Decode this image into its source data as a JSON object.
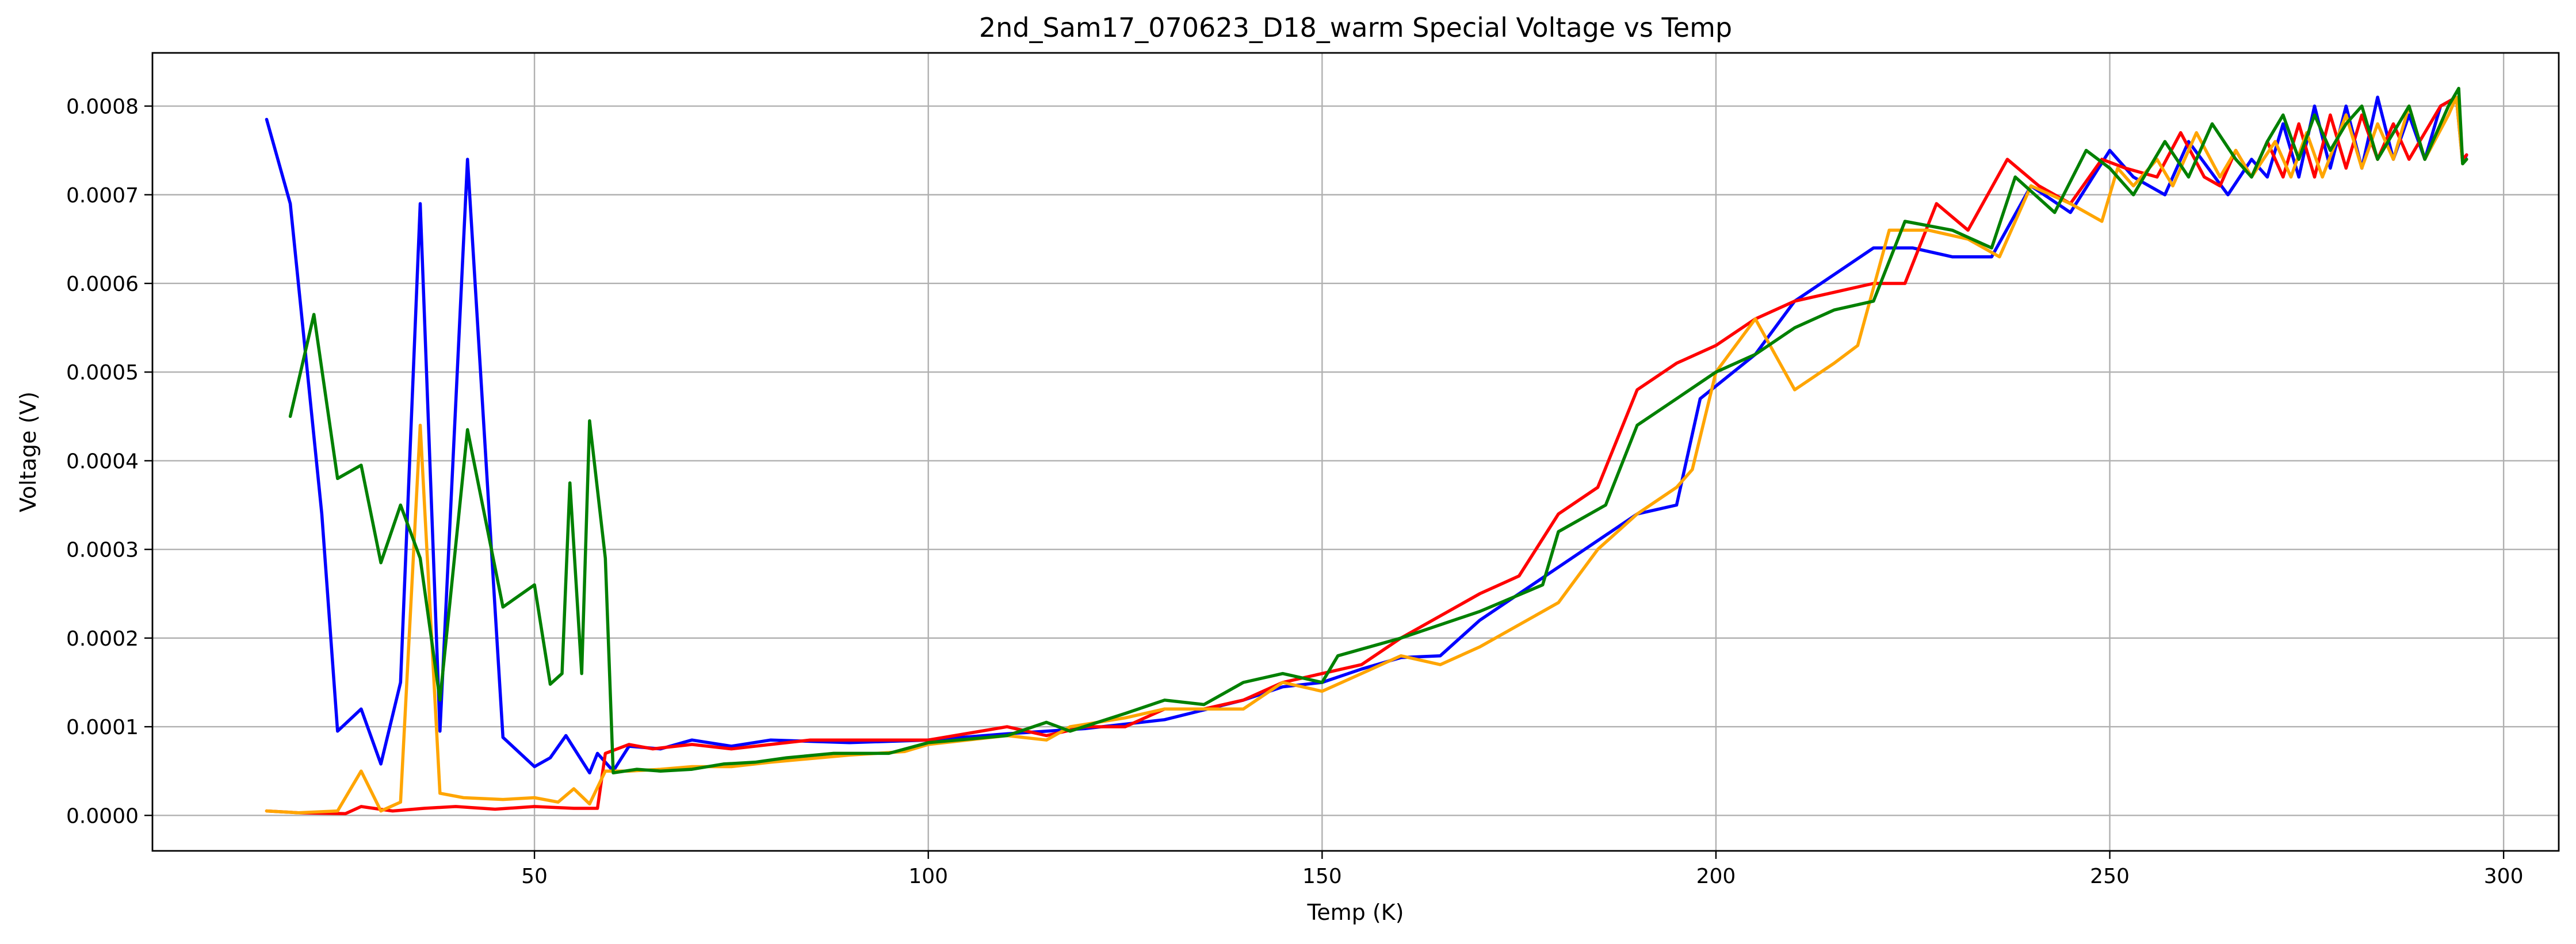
{
  "chart_data": {
    "type": "line",
    "title": "2nd_Sam17_070623_D18_warm Special Voltage vs Temp",
    "xlabel": "Temp (K)",
    "ylabel": "Voltage (V)",
    "xlim": [
      1.5,
      307
    ],
    "ylim": [
      -4e-05,
      0.00086
    ],
    "grid": true,
    "xticks": [
      50,
      100,
      150,
      200,
      250,
      300
    ],
    "xtick_labels": [
      "50",
      "100",
      "150",
      "200",
      "250",
      "300"
    ],
    "yticks": [
      0,
      0.0001,
      0.0002,
      0.0003,
      0.0004,
      0.0005,
      0.0006,
      0.0007,
      0.0008
    ],
    "ytick_labels": [
      "0.0000",
      "0.0001",
      "0.0002",
      "0.0003",
      "0.0004",
      "0.0005",
      "0.0006",
      "0.0007",
      "0.0008"
    ],
    "series": [
      {
        "name": "blue",
        "color": "#0000ff",
        "points": [
          [
            16,
            0.000785
          ],
          [
            19,
            0.00069
          ],
          [
            23,
            0.00034
          ],
          [
            25,
            9.5e-05
          ],
          [
            28,
            0.00012
          ],
          [
            30.5,
            5.8e-05
          ],
          [
            33,
            0.00015
          ],
          [
            35.5,
            0.00069
          ],
          [
            38,
            9.5e-05
          ],
          [
            41.5,
            0.00074
          ],
          [
            46,
            8.8e-05
          ],
          [
            50,
            5.5e-05
          ],
          [
            52,
            6.5e-05
          ],
          [
            54,
            9e-05
          ],
          [
            57,
            4.8e-05
          ],
          [
            58,
            7e-05
          ],
          [
            60,
            5e-05
          ],
          [
            62,
            7.8e-05
          ],
          [
            66,
            7.5e-05
          ],
          [
            70,
            8.5e-05
          ],
          [
            75,
            7.8e-05
          ],
          [
            80,
            8.5e-05
          ],
          [
            90,
            8.2e-05
          ],
          [
            100,
            8.5e-05
          ],
          [
            110,
            9.2e-05
          ],
          [
            120,
            9.8e-05
          ],
          [
            130,
            0.000108
          ],
          [
            140,
            0.00013
          ],
          [
            145,
            0.000145
          ],
          [
            150,
            0.00015
          ],
          [
            155,
            0.000165
          ],
          [
            160,
            0.000178
          ],
          [
            165,
            0.00018
          ],
          [
            170,
            0.00022
          ],
          [
            180,
            0.00028
          ],
          [
            190,
            0.00034
          ],
          [
            195,
            0.00035
          ],
          [
            198,
            0.00047
          ],
          [
            205,
            0.00052
          ],
          [
            210,
            0.00058
          ],
          [
            215,
            0.00061
          ],
          [
            220,
            0.00064
          ],
          [
            225,
            0.00064
          ],
          [
            230,
            0.00063
          ],
          [
            235,
            0.00063
          ],
          [
            240,
            0.00071
          ],
          [
            245,
            0.00068
          ],
          [
            250,
            0.00075
          ],
          [
            253,
            0.00072
          ],
          [
            257,
            0.0007
          ],
          [
            260,
            0.00076
          ],
          [
            265,
            0.0007
          ],
          [
            268,
            0.00074
          ],
          [
            270,
            0.00072
          ],
          [
            272,
            0.00078
          ],
          [
            274,
            0.00072
          ],
          [
            276,
            0.0008
          ],
          [
            278,
            0.00073
          ],
          [
            280,
            0.0008
          ],
          [
            282,
            0.00073
          ],
          [
            284,
            0.00081
          ],
          [
            286,
            0.00074
          ],
          [
            288,
            0.00079
          ],
          [
            290,
            0.00074
          ],
          [
            292,
            0.0008
          ],
          [
            294,
            0.00081
          ],
          [
            294.8,
            0.000735
          ],
          [
            295.3,
            0.000745
          ]
        ]
      },
      {
        "name": "red",
        "color": "#ff0000",
        "points": [
          [
            16,
            5e-06
          ],
          [
            20,
            3e-06
          ],
          [
            26,
            2e-06
          ],
          [
            28,
            1e-05
          ],
          [
            32,
            5e-06
          ],
          [
            36,
            8e-06
          ],
          [
            40,
            1e-05
          ],
          [
            45,
            7e-06
          ],
          [
            50,
            1e-05
          ],
          [
            55,
            8e-06
          ],
          [
            58,
            8e-06
          ],
          [
            59,
            7e-05
          ],
          [
            62,
            8e-05
          ],
          [
            65,
            7.5e-05
          ],
          [
            70,
            8e-05
          ],
          [
            75,
            7.5e-05
          ],
          [
            80,
            8e-05
          ],
          [
            85,
            8.5e-05
          ],
          [
            90,
            8.5e-05
          ],
          [
            100,
            8.5e-05
          ],
          [
            110,
            0.0001
          ],
          [
            115,
            9e-05
          ],
          [
            120,
            0.0001
          ],
          [
            125,
            0.0001
          ],
          [
            130,
            0.00012
          ],
          [
            135,
            0.00012
          ],
          [
            140,
            0.00013
          ],
          [
            145,
            0.00015
          ],
          [
            150,
            0.00016
          ],
          [
            155,
            0.00017
          ],
          [
            160,
            0.0002
          ],
          [
            170,
            0.00025
          ],
          [
            175,
            0.00027
          ],
          [
            180,
            0.00034
          ],
          [
            185,
            0.00037
          ],
          [
            190,
            0.00048
          ],
          [
            195,
            0.00051
          ],
          [
            200,
            0.00053
          ],
          [
            205,
            0.00056
          ],
          [
            210,
            0.00058
          ],
          [
            215,
            0.00059
          ],
          [
            220,
            0.0006
          ],
          [
            224,
            0.0006
          ],
          [
            228,
            0.00069
          ],
          [
            232,
            0.00066
          ],
          [
            237,
            0.00074
          ],
          [
            241,
            0.00071
          ],
          [
            245,
            0.00069
          ],
          [
            249,
            0.00074
          ],
          [
            252,
            0.00073
          ],
          [
            256,
            0.00072
          ],
          [
            259,
            0.00077
          ],
          [
            262,
            0.00072
          ],
          [
            264,
            0.00071
          ],
          [
            266,
            0.00075
          ],
          [
            268,
            0.00072
          ],
          [
            270,
            0.00076
          ],
          [
            272,
            0.00072
          ],
          [
            274,
            0.00078
          ],
          [
            276,
            0.00072
          ],
          [
            278,
            0.00079
          ],
          [
            280,
            0.00073
          ],
          [
            282,
            0.00079
          ],
          [
            284,
            0.00074
          ],
          [
            286,
            0.00078
          ],
          [
            288,
            0.00074
          ],
          [
            292,
            0.0008
          ],
          [
            294,
            0.00081
          ],
          [
            294.8,
            0.00074
          ],
          [
            295.3,
            0.000745
          ]
        ]
      },
      {
        "name": "orange",
        "color": "#ffa500",
        "points": [
          [
            16,
            5e-06
          ],
          [
            20,
            3e-06
          ],
          [
            25,
            5e-06
          ],
          [
            28,
            5e-05
          ],
          [
            30.5,
            5e-06
          ],
          [
            33,
            1.5e-05
          ],
          [
            35.5,
            0.00044
          ],
          [
            38,
            2.5e-05
          ],
          [
            41,
            2e-05
          ],
          [
            46,
            1.8e-05
          ],
          [
            50,
            2e-05
          ],
          [
            53,
            1.5e-05
          ],
          [
            55,
            3e-05
          ],
          [
            57,
            1.3e-05
          ],
          [
            59,
            5e-05
          ],
          [
            62,
            5e-05
          ],
          [
            66,
            5.2e-05
          ],
          [
            70,
            5.5e-05
          ],
          [
            75,
            5.5e-05
          ],
          [
            80,
            6e-05
          ],
          [
            90,
            6.8e-05
          ],
          [
            97,
            7.2e-05
          ],
          [
            100,
            8e-05
          ],
          [
            110,
            9e-05
          ],
          [
            115,
            8.5e-05
          ],
          [
            118,
            0.0001
          ],
          [
            125,
            0.00011
          ],
          [
            130,
            0.00012
          ],
          [
            135,
            0.00012
          ],
          [
            140,
            0.00012
          ],
          [
            145,
            0.00015
          ],
          [
            150,
            0.00014
          ],
          [
            155,
            0.00016
          ],
          [
            160,
            0.00018
          ],
          [
            165,
            0.00017
          ],
          [
            170,
            0.00019
          ],
          [
            180,
            0.00024
          ],
          [
            185,
            0.0003
          ],
          [
            190,
            0.00034
          ],
          [
            195,
            0.00037
          ],
          [
            197,
            0.00039
          ],
          [
            200,
            0.0005
          ],
          [
            205,
            0.00056
          ],
          [
            210,
            0.00048
          ],
          [
            215,
            0.00051
          ],
          [
            218,
            0.00053
          ],
          [
            222,
            0.00066
          ],
          [
            227,
            0.00066
          ],
          [
            232,
            0.00065
          ],
          [
            236,
            0.00063
          ],
          [
            240,
            0.00071
          ],
          [
            245,
            0.00069
          ],
          [
            249,
            0.00067
          ],
          [
            251,
            0.00073
          ],
          [
            253,
            0.00071
          ],
          [
            256,
            0.00074
          ],
          [
            258,
            0.00071
          ],
          [
            261,
            0.00077
          ],
          [
            264,
            0.00072
          ],
          [
            266,
            0.00075
          ],
          [
            268,
            0.00072
          ],
          [
            271,
            0.00076
          ],
          [
            273,
            0.00072
          ],
          [
            275,
            0.00077
          ],
          [
            277,
            0.00072
          ],
          [
            280,
            0.00079
          ],
          [
            282,
            0.00073
          ],
          [
            284,
            0.00078
          ],
          [
            286,
            0.00074
          ],
          [
            288,
            0.0008
          ],
          [
            290,
            0.00074
          ],
          [
            293,
            0.00079
          ],
          [
            294,
            0.00081
          ],
          [
            294.8,
            0.000735
          ],
          [
            295.3,
            0.00074
          ]
        ]
      },
      {
        "name": "green",
        "color": "#008000",
        "points": [
          [
            19,
            0.00045
          ],
          [
            22,
            0.000565
          ],
          [
            25,
            0.00038
          ],
          [
            28,
            0.000395
          ],
          [
            30.5,
            0.000285
          ],
          [
            33,
            0.00035
          ],
          [
            35.5,
            0.00029
          ],
          [
            38,
            0.00013
          ],
          [
            41.5,
            0.000435
          ],
          [
            46,
            0.000235
          ],
          [
            50,
            0.00026
          ],
          [
            52,
            0.000148
          ],
          [
            53.5,
            0.00016
          ],
          [
            54.5,
            0.000375
          ],
          [
            56,
            0.00016
          ],
          [
            57,
            0.000445
          ],
          [
            59,
            0.00029
          ],
          [
            60,
            4.8e-05
          ],
          [
            63,
            5.2e-05
          ],
          [
            66,
            5e-05
          ],
          [
            70,
            5.2e-05
          ],
          [
            74,
            5.8e-05
          ],
          [
            78,
            6e-05
          ],
          [
            82,
            6.5e-05
          ],
          [
            88,
            7e-05
          ],
          [
            95,
            7e-05
          ],
          [
            100,
            8.2e-05
          ],
          [
            110,
            9e-05
          ],
          [
            115,
            0.000105
          ],
          [
            118,
            9.5e-05
          ],
          [
            125,
            0.000115
          ],
          [
            130,
            0.00013
          ],
          [
            135,
            0.000125
          ],
          [
            140,
            0.00015
          ],
          [
            145,
            0.00016
          ],
          [
            150,
            0.00015
          ],
          [
            152,
            0.00018
          ],
          [
            160,
            0.0002
          ],
          [
            170,
            0.00023
          ],
          [
            178,
            0.00026
          ],
          [
            180,
            0.00032
          ],
          [
            186,
            0.00035
          ],
          [
            190,
            0.00044
          ],
          [
            195,
            0.00047
          ],
          [
            200,
            0.0005
          ],
          [
            205,
            0.00052
          ],
          [
            210,
            0.00055
          ],
          [
            215,
            0.00057
          ],
          [
            220,
            0.00058
          ],
          [
            224,
            0.00067
          ],
          [
            230,
            0.00066
          ],
          [
            235,
            0.00064
          ],
          [
            238,
            0.00072
          ],
          [
            243,
            0.00068
          ],
          [
            247,
            0.00075
          ],
          [
            250,
            0.00073
          ],
          [
            253,
            0.0007
          ],
          [
            257,
            0.00076
          ],
          [
            260,
            0.00072
          ],
          [
            263,
            0.00078
          ],
          [
            266,
            0.00074
          ],
          [
            268,
            0.00072
          ],
          [
            270,
            0.00076
          ],
          [
            272,
            0.00079
          ],
          [
            274,
            0.00074
          ],
          [
            276,
            0.00079
          ],
          [
            278,
            0.00075
          ],
          [
            280,
            0.00078
          ],
          [
            282,
            0.0008
          ],
          [
            284,
            0.00074
          ],
          [
            286,
            0.00077
          ],
          [
            288,
            0.0008
          ],
          [
            290,
            0.00074
          ],
          [
            293,
            0.0008
          ],
          [
            294.3,
            0.00082
          ],
          [
            294.8,
            0.000735
          ],
          [
            295.3,
            0.00074
          ]
        ]
      }
    ]
  }
}
